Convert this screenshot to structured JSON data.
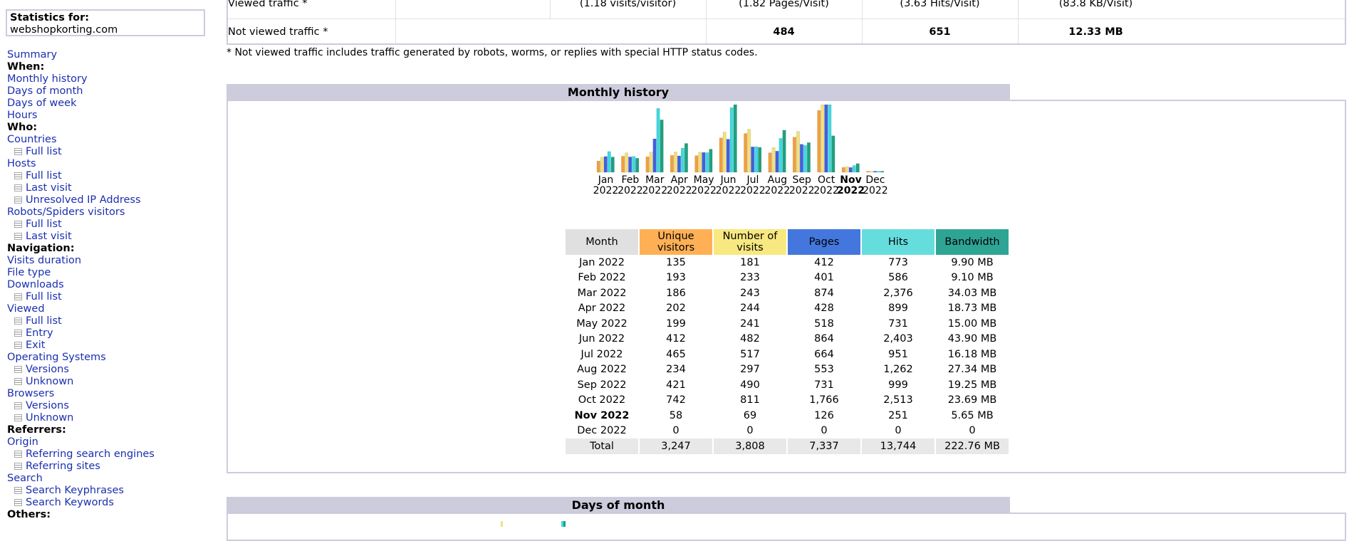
{
  "site": {
    "label": "Statistics for:",
    "domain": "webshopkorting.com"
  },
  "menu": [
    {
      "type": "link",
      "label": "Summary"
    },
    {
      "type": "head",
      "label": "When:"
    },
    {
      "type": "link",
      "label": "Monthly history"
    },
    {
      "type": "link",
      "label": "Days of month"
    },
    {
      "type": "link",
      "label": "Days of week"
    },
    {
      "type": "link",
      "label": "Hours"
    },
    {
      "type": "head",
      "label": "Who:"
    },
    {
      "type": "link",
      "label": "Countries"
    },
    {
      "type": "sub",
      "label": "Full list"
    },
    {
      "type": "link",
      "label": "Hosts"
    },
    {
      "type": "sub",
      "label": "Full list"
    },
    {
      "type": "sub",
      "label": "Last visit"
    },
    {
      "type": "sub",
      "label": "Unresolved IP Address"
    },
    {
      "type": "link",
      "label": "Robots/Spiders visitors"
    },
    {
      "type": "sub",
      "label": "Full list"
    },
    {
      "type": "sub",
      "label": "Last visit"
    },
    {
      "type": "head",
      "label": "Navigation:"
    },
    {
      "type": "link",
      "label": "Visits duration"
    },
    {
      "type": "link",
      "label": "File type"
    },
    {
      "type": "link",
      "label": "Downloads"
    },
    {
      "type": "sub",
      "label": "Full list"
    },
    {
      "type": "link",
      "label": "Viewed"
    },
    {
      "type": "sub",
      "label": "Full list"
    },
    {
      "type": "sub",
      "label": "Entry"
    },
    {
      "type": "sub",
      "label": "Exit"
    },
    {
      "type": "link",
      "label": "Operating Systems"
    },
    {
      "type": "sub",
      "label": "Versions"
    },
    {
      "type": "sub",
      "label": "Unknown"
    },
    {
      "type": "link",
      "label": "Browsers"
    },
    {
      "type": "sub",
      "label": "Versions"
    },
    {
      "type": "sub",
      "label": "Unknown"
    },
    {
      "type": "head",
      "label": "Referrers:"
    },
    {
      "type": "link",
      "label": "Origin"
    },
    {
      "type": "sub",
      "label": "Referring search engines"
    },
    {
      "type": "sub",
      "label": "Referring sites"
    },
    {
      "type": "link",
      "label": "Search"
    },
    {
      "type": "sub",
      "label": "Search Keyphrases"
    },
    {
      "type": "sub",
      "label": "Search Keywords"
    },
    {
      "type": "head",
      "label": "Others:"
    }
  ],
  "summary": {
    "viewed": {
      "label": "Viewed traffic *",
      "visits_per_visitor": "(1.18 visits/visitor)",
      "pages_per_visit": "(1.82 Pages/Visit)",
      "hits_per_visit": "(3.63 Hits/Visit)",
      "kb_per_visit": "(83.8 KB/Visit)"
    },
    "not_viewed": {
      "label": "Not viewed traffic *",
      "pages": "484",
      "hits": "651",
      "bandwidth": "12.33 MB"
    },
    "footnote": "* Not viewed traffic includes traffic generated by robots, worms, or replies with special HTTP status codes."
  },
  "monthly_history": {
    "title": "Monthly history",
    "headers": [
      "Month",
      "Unique visitors",
      "Number of visits",
      "Pages",
      "Hits",
      "Bandwidth"
    ],
    "header_colors": [
      "#e0e0e0",
      "#ffb055",
      "#f8e880",
      "#4477dd",
      "#66dddd",
      "#2ea495"
    ],
    "current_month": "Nov 2022",
    "rows": [
      [
        "Jan 2022",
        "135",
        "181",
        "412",
        "773",
        "9.90 MB"
      ],
      [
        "Feb 2022",
        "193",
        "233",
        "401",
        "586",
        "9.10 MB"
      ],
      [
        "Mar 2022",
        "186",
        "243",
        "874",
        "2,376",
        "34.03 MB"
      ],
      [
        "Apr 2022",
        "202",
        "244",
        "428",
        "899",
        "18.73 MB"
      ],
      [
        "May 2022",
        "199",
        "241",
        "518",
        "731",
        "15.00 MB"
      ],
      [
        "Jun 2022",
        "412",
        "482",
        "864",
        "2,403",
        "43.90 MB"
      ],
      [
        "Jul 2022",
        "465",
        "517",
        "664",
        "951",
        "16.18 MB"
      ],
      [
        "Aug 2022",
        "234",
        "297",
        "553",
        "1,262",
        "27.34 MB"
      ],
      [
        "Sep 2022",
        "421",
        "490",
        "731",
        "999",
        "19.25 MB"
      ],
      [
        "Oct 2022",
        "742",
        "811",
        "1,766",
        "2,513",
        "23.69 MB"
      ],
      [
        "Nov 2022",
        "58",
        "69",
        "126",
        "251",
        "5.65 MB"
      ],
      [
        "Dec 2022",
        "0",
        "0",
        "0",
        "0",
        "0"
      ]
    ],
    "total": [
      "Total",
      "3,247",
      "3,808",
      "7,337",
      "13,744",
      "222.76 MB"
    ]
  },
  "chart_data": {
    "type": "bar",
    "categories": [
      "Jan 2022",
      "Feb 2022",
      "Mar 2022",
      "Apr 2022",
      "May 2022",
      "Jun 2022",
      "Jul 2022",
      "Aug 2022",
      "Sep 2022",
      "Oct 2022",
      "Nov 2022",
      "Dec 2022"
    ],
    "series": [
      {
        "name": "Unique visitors",
        "values": [
          135,
          193,
          186,
          202,
          199,
          412,
          465,
          234,
          421,
          742,
          58,
          0
        ],
        "color": "#f0a040"
      },
      {
        "name": "Number of visits",
        "values": [
          181,
          233,
          243,
          244,
          241,
          482,
          517,
          297,
          490,
          811,
          69,
          0
        ],
        "color": "#f0e080"
      },
      {
        "name": "Pages",
        "values": [
          412,
          401,
          874,
          428,
          518,
          864,
          664,
          553,
          731,
          1766,
          126,
          0
        ],
        "color": "#4060e0"
      },
      {
        "name": "Hits",
        "values": [
          773,
          586,
          2376,
          899,
          731,
          2403,
          951,
          1262,
          999,
          2513,
          251,
          0
        ],
        "color": "#40d8e0"
      },
      {
        "name": "Bandwidth (MB)",
        "values": [
          9.9,
          9.1,
          34.03,
          18.73,
          15.0,
          43.9,
          16.18,
          27.34,
          19.25,
          23.69,
          5.65,
          0
        ],
        "color": "#20a080"
      }
    ],
    "month_labels": [
      "Jan",
      "Feb",
      "Mar",
      "Apr",
      "May",
      "Jun",
      "Jul",
      "Aug",
      "Sep",
      "Oct",
      "Nov",
      "Dec"
    ],
    "year_label": "2022",
    "current_index": 10
  },
  "days_of_month": {
    "title": "Days of month"
  }
}
